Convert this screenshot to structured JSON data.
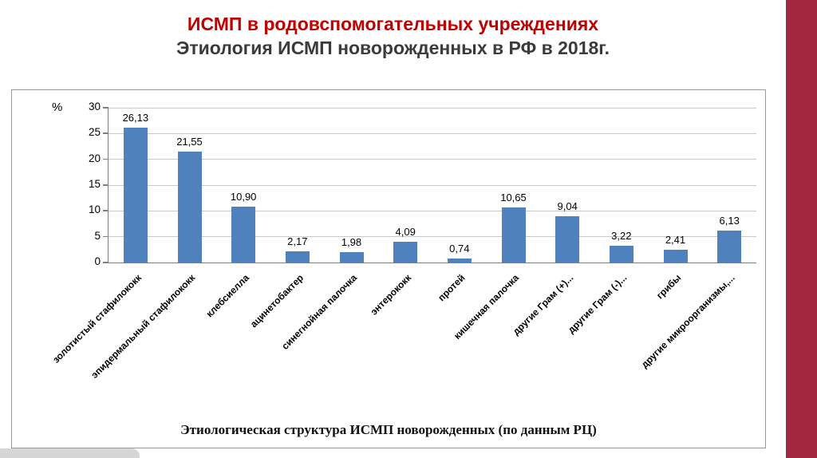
{
  "slide": {
    "title_line1": "ИСМП в родовспомогательных учреждениях",
    "title_line2": "Этиология ИСМП новорожденных в РФ в 2018г.",
    "caption": "Этиологическая структура ИСМП новорожденных (по данным РЦ)"
  },
  "colors": {
    "title_red": "#C00000",
    "title_dark": "#3B3B3B",
    "bar_blue": "#4F81BD",
    "stripe_maroon": "#A3273F",
    "corner_gray": "#D6D6D6"
  },
  "chart_data": {
    "type": "bar",
    "title": "",
    "xlabel": "",
    "ylabel": "%",
    "ylim": [
      0,
      30
    ],
    "yticks": [
      0,
      5,
      10,
      15,
      20,
      25,
      30
    ],
    "grid": true,
    "legend": "none",
    "categories": [
      "золотистый стафилококк",
      "эпидермальный стафилококк",
      "клебсиелла",
      "ацинетобактер",
      "синегнойная палочка",
      "энтерококк",
      "протей",
      "кишечная палочка",
      "другие Грам (+)...",
      "другие Грам (-)...",
      "грибы",
      "другие микроорганизмы,..."
    ],
    "values": [
      26.13,
      21.55,
      10.9,
      2.17,
      1.98,
      4.09,
      0.74,
      10.65,
      9.04,
      3.22,
      2.41,
      6.13
    ],
    "value_labels": [
      "26,13",
      "21,55",
      "10,90",
      "2,17",
      "1,98",
      "4,09",
      "0,74",
      "10,65",
      "9,04",
      "3,22",
      "2,41",
      "6,13"
    ]
  }
}
